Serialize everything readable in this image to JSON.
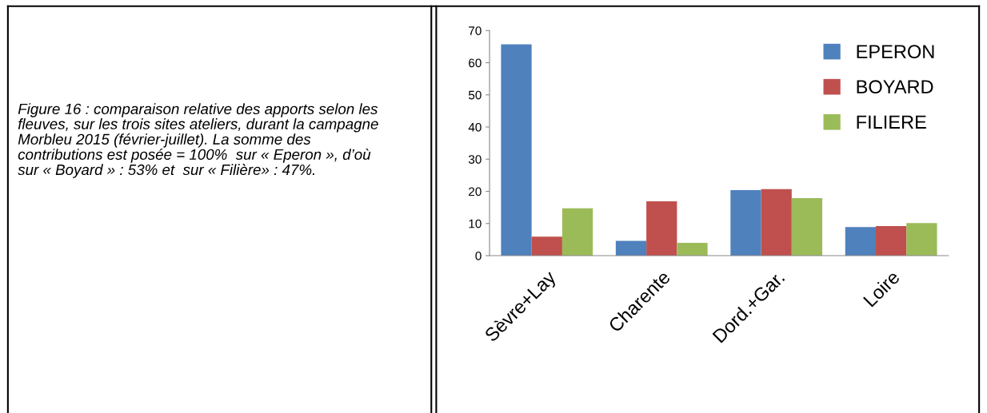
{
  "chart_data": {
    "type": "bar",
    "categories": [
      "Sèvre+Lay",
      "Charente",
      "Dord.+Gar.",
      "Loire"
    ],
    "series": [
      {
        "name": "EPERON",
        "color": "#4f81bd",
        "values": [
          65.7,
          4.6,
          20.4,
          8.9
        ]
      },
      {
        "name": "BOYARD",
        "color": "#c0504d",
        "values": [
          5.9,
          16.9,
          20.7,
          9.2
        ]
      },
      {
        "name": "FILIERE",
        "color": "#9bbb59",
        "values": [
          14.7,
          4.0,
          17.9,
          10.1
        ]
      }
    ],
    "ylim": [
      0,
      70
    ],
    "yticks": [
      0,
      10,
      20,
      30,
      40,
      50,
      60,
      70
    ],
    "grid": false,
    "legend": "right",
    "annotations": [
      "Figure 16 : comparaison relative des apports selon les fleuves, sur les trois sites ateliers, durant la campagne Morbleu 2015 (février-juillet). La somme des contributions est posée = 100%  sur « Eperon », d’où  sur « Boyard » : 53% et  sur « Filière» : 47%."
    ]
  }
}
